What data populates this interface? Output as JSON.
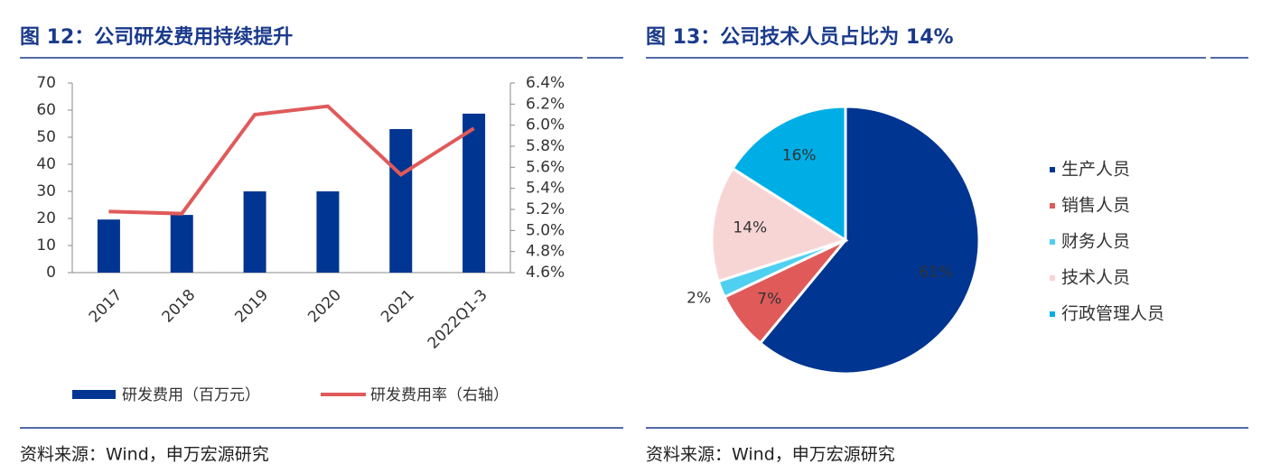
{
  "chart_data": [
    {
      "type": "bar",
      "title": "图 12：公司研发费用持续提升",
      "source": "资料来源：Wind，申万宏源研究",
      "categories": [
        "2017",
        "2018",
        "2019",
        "2020",
        "2021",
        "2022Q1-3"
      ],
      "series": [
        {
          "name": "研发费用（百万元）",
          "type": "bar",
          "color": "#003591",
          "values": [
            19.6,
            21.3,
            30,
            30,
            53,
            58.7
          ]
        },
        {
          "name": "研发费用率（右轴）",
          "type": "line",
          "axis": "y2",
          "color": "#e05a5a",
          "values": [
            5.18,
            5.16,
            6.1,
            6.18,
            5.53,
            5.97
          ]
        }
      ],
      "ylim": [
        0,
        70
      ],
      "yticks": [
        0,
        10,
        20,
        30,
        40,
        50,
        60,
        70
      ],
      "y2lim": [
        4.6,
        6.4
      ],
      "y2ticks": [
        {
          "value": 4.6,
          "label": "4.6%"
        },
        {
          "value": 4.8,
          "label": "4.8%"
        },
        {
          "value": 5.0,
          "label": "5.0%"
        },
        {
          "value": 5.2,
          "label": "5.2%"
        },
        {
          "value": 5.4,
          "label": "5.4%"
        },
        {
          "value": 5.6,
          "label": "5.6%"
        },
        {
          "value": 5.8,
          "label": "5.8%"
        },
        {
          "value": 6.0,
          "label": "6.0%"
        },
        {
          "value": 6.2,
          "label": "6.2%"
        },
        {
          "value": 6.4,
          "label": "6.4%"
        }
      ],
      "grid": false,
      "legend": "bottom"
    },
    {
      "type": "pie",
      "title": "图 13：公司技术人员占比为 14%",
      "source": "资料来源：Wind，申万宏源研究",
      "categories": [
        "生产人员",
        "销售人员",
        "财务人员",
        "技术人员",
        "行政管理人员"
      ],
      "values": [
        61,
        7,
        2,
        14,
        16
      ],
      "value_labels": [
        "61%",
        "7%",
        "2%",
        "14%",
        "16%"
      ],
      "colors": [
        "#003591",
        "#e05a5a",
        "#4fd0f0",
        "#f8d5d5",
        "#00aee6"
      ],
      "legend": "right"
    }
  ]
}
